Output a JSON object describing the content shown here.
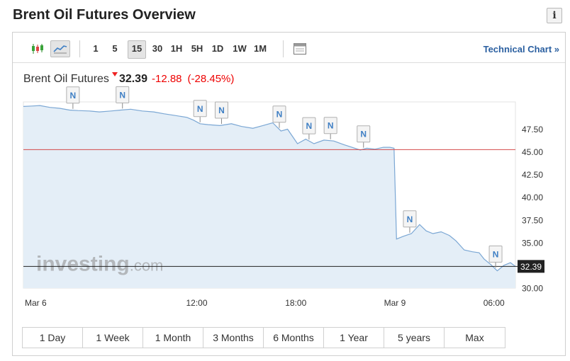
{
  "page": {
    "title": "Brent Oil Futures Overview",
    "info_icon": "info-icon"
  },
  "toolbar": {
    "chart_type_icons": [
      "candlestick-icon",
      "line-chart-icon"
    ],
    "timeframes": [
      "1",
      "5",
      "15",
      "30",
      "1H",
      "5H",
      "1D",
      "1W",
      "1M"
    ],
    "active_timeframe": "15",
    "calendar_icon": "calendar-icon",
    "technical_chart_label": "Technical Chart »"
  },
  "quote": {
    "name": "Brent Oil Futures",
    "price": "32.39",
    "change": "-12.88",
    "change_pct": "(-28.45%)"
  },
  "ranges": [
    "1 Day",
    "1 Week",
    "1 Month",
    "3 Months",
    "6 Months",
    "1 Year",
    "5 years",
    "Max"
  ],
  "watermark": "investing.com",
  "colors": {
    "line": "#7ba7d4",
    "fill": "#e4eef7",
    "ref_line": "#d44a4a",
    "price_line": "#222222",
    "down": "#e00000",
    "link": "#2a5fa0"
  },
  "chart_data": {
    "type": "area",
    "y_ticks": [
      "47.50",
      "45.00",
      "42.50",
      "40.00",
      "37.50",
      "35.00",
      "32.39",
      "30.00"
    ],
    "ylim": [
      30.0,
      50.5
    ],
    "x_ticks": [
      "Mar 6",
      "12:00",
      "18:00",
      "Mar 9",
      "06:00"
    ],
    "x_tick_positions": [
      0.0,
      10.5,
      16.5,
      22.5,
      28.5
    ],
    "xlim": [
      0,
      29.8
    ],
    "reference_line": 45.25,
    "last_price": 32.39,
    "news_markers": [
      {
        "label": "N",
        "x": 3.0
      },
      {
        "label": "N",
        "x": 6.0
      },
      {
        "label": "N",
        "x": 10.7
      },
      {
        "label": "N",
        "x": 12.0
      },
      {
        "label": "N",
        "x": 15.5
      },
      {
        "label": "N",
        "x": 17.3
      },
      {
        "label": "N",
        "x": 18.6
      },
      {
        "label": "N",
        "x": 20.6
      },
      {
        "label": "N",
        "x": 23.4
      },
      {
        "label": "N",
        "x": 28.6
      }
    ],
    "series": [
      {
        "x": [
          0,
          0.5,
          1.0,
          1.6,
          2.2,
          2.8,
          3.3,
          4.0,
          4.6,
          5.3,
          5.9,
          6.5,
          7.2,
          7.9,
          8.5,
          9.2,
          9.9,
          10.3,
          10.7,
          11.2,
          11.9,
          12.6,
          13.2,
          13.9,
          14.5,
          15.1,
          15.6,
          16.0,
          16.6,
          17.1,
          17.6,
          18.2,
          18.8,
          19.4,
          19.9,
          20.4,
          20.8,
          21.3,
          21.8,
          22.2,
          22.45,
          22.6,
          23.0,
          23.5,
          24.0,
          24.4,
          24.8,
          25.3,
          25.8,
          26.2,
          26.7,
          27.2,
          27.6,
          27.9,
          28.3,
          28.7,
          29.1,
          29.5,
          29.8
        ],
        "values": [
          50.0,
          50.05,
          50.1,
          49.9,
          49.8,
          49.6,
          49.55,
          49.5,
          49.4,
          49.5,
          49.6,
          49.7,
          49.5,
          49.4,
          49.2,
          49.0,
          48.8,
          48.5,
          48.1,
          48.0,
          47.9,
          48.1,
          47.8,
          47.6,
          47.9,
          48.2,
          47.3,
          47.5,
          45.9,
          46.4,
          45.9,
          46.3,
          46.2,
          45.8,
          45.5,
          45.2,
          45.4,
          45.3,
          45.5,
          45.5,
          45.4,
          35.4,
          35.7,
          36.0,
          37.0,
          36.3,
          36.0,
          36.2,
          35.8,
          35.2,
          34.2,
          34.0,
          33.9,
          33.2,
          32.6,
          31.9,
          32.5,
          32.8,
          32.39
        ]
      }
    ]
  }
}
